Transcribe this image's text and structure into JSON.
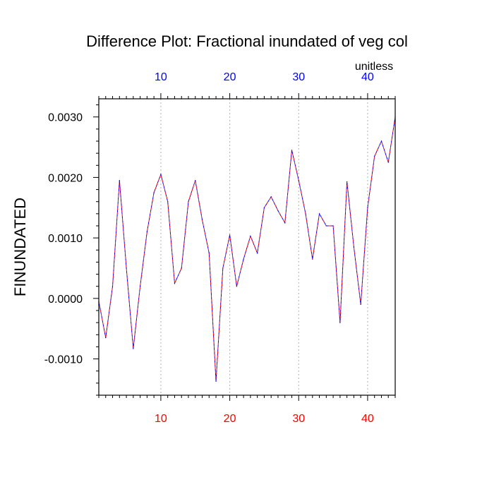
{
  "chart_data": {
    "type": "line",
    "title": "Difference Plot: Fractional inundated of veg col",
    "ylabel": "FINUNDATED",
    "units_label": "unitless",
    "xlim": [
      1,
      44
    ],
    "ylim": [
      -0.0016,
      0.0033
    ],
    "x_ticks_bottom": [
      10,
      20,
      30,
      40
    ],
    "x_ticks_top": [
      10,
      20,
      30,
      40
    ],
    "y_ticks": [
      -0.001,
      0.0,
      0.001,
      0.002,
      0.003
    ],
    "y_tick_labels": [
      "-0.0010",
      "0.0000",
      "0.0010",
      "0.0020",
      "0.0030"
    ],
    "grid": "dotted vertical at x ticks",
    "colors": {
      "bottom_tick_labels": "#ff0000",
      "top_tick_labels": "#0000ff",
      "series_a": "#ff0000",
      "series_b": "#0000ff"
    },
    "x": [
      1,
      2,
      3,
      4,
      5,
      6,
      7,
      8,
      9,
      10,
      11,
      12,
      13,
      14,
      15,
      16,
      17,
      18,
      19,
      20,
      21,
      22,
      23,
      24,
      25,
      26,
      27,
      28,
      29,
      30,
      31,
      32,
      33,
      34,
      35,
      36,
      37,
      38,
      39,
      40,
      41,
      42,
      43,
      44
    ],
    "series": [
      {
        "values": [
          -5e-05,
          -0.00065,
          0.0002,
          0.00195,
          0.0005,
          -0.00083,
          0.0002,
          0.0011,
          0.00175,
          0.00205,
          0.0016,
          0.00025,
          0.0005,
          0.0016,
          0.00195,
          0.0013,
          0.00075,
          -0.00137,
          0.0005,
          0.00105,
          0.0002,
          0.00065,
          0.00103,
          0.00075,
          0.0015,
          0.00168,
          0.00145,
          0.00125,
          0.00245,
          0.00195,
          0.0014,
          0.00065,
          0.0014,
          0.0012,
          0.0012,
          -0.0004,
          0.00193,
          0.00085,
          -0.0001,
          0.0015,
          0.00235,
          0.0026,
          0.00225,
          0.003
        ],
        "color": "#ff0000"
      },
      {
        "values": [
          -5e-05,
          -0.00065,
          0.0002,
          0.00195,
          0.0005,
          -0.00083,
          0.0002,
          0.0011,
          0.00175,
          0.00205,
          0.0016,
          0.00025,
          0.0005,
          0.0016,
          0.00195,
          0.0013,
          0.00075,
          -0.00137,
          0.0005,
          0.00105,
          0.0002,
          0.00065,
          0.00103,
          0.00075,
          0.0015,
          0.00168,
          0.00145,
          0.00125,
          0.00245,
          0.00195,
          0.0014,
          0.00065,
          0.0014,
          0.0012,
          0.0012,
          -0.0004,
          0.00193,
          0.00085,
          -0.0001,
          0.0015,
          0.00235,
          0.0026,
          0.00225,
          0.003
        ],
        "color": "#0000ff"
      }
    ]
  }
}
